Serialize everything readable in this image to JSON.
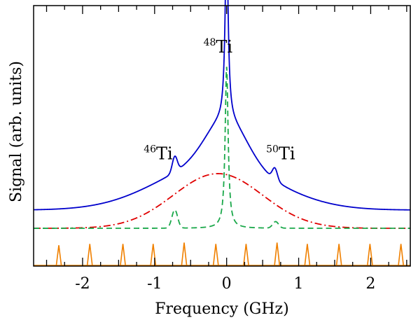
{
  "chart_data": {
    "type": "line",
    "title": "",
    "xlabel": "Frequency (GHz)",
    "ylabel": "Signal (arb. units)",
    "xlim": [
      -2.68,
      2.55
    ],
    "ylim": [
      0,
      1
    ],
    "xticks": [
      -2,
      -1,
      0,
      1,
      2
    ],
    "xtick_labels": [
      "-2",
      "-1",
      "0",
      "1",
      "2"
    ],
    "yticks_labeled": false,
    "grid": false,
    "legend": "none",
    "annotations": [
      {
        "mass": "48",
        "element": "Ti",
        "x": -0.12,
        "y": 0.82
      },
      {
        "mass": "46",
        "element": "Ti",
        "x": -0.95,
        "y": 0.41
      },
      {
        "mass": "50",
        "element": "Ti",
        "x": 0.75,
        "y": 0.41
      }
    ],
    "series": [
      {
        "style": "solid",
        "color": "#0000cc",
        "baseline": 0.215,
        "peaks": [
          {
            "x": 0.0,
            "height": 0.71,
            "width": 0.025,
            "shape": "lorentzian"
          },
          {
            "x": 0.0,
            "height": 0.17,
            "width": 0.28,
            "shape": "gaussian"
          },
          {
            "x": -0.72,
            "height": 0.06,
            "width": 0.035,
            "shape": "gaussian"
          },
          {
            "x": 0.67,
            "height": 0.045,
            "width": 0.035,
            "shape": "gaussian"
          }
        ],
        "broad": {
          "x": -0.15,
          "height": 0.18,
          "width": 0.8
        }
      },
      {
        "style": "dash-dot",
        "color": "#e00000",
        "baseline": 0.145,
        "broad": {
          "x": -0.12,
          "height": 0.21,
          "width": 0.62
        }
      },
      {
        "style": "dashed",
        "color": "#1aa84a",
        "baseline": 0.145,
        "peaks": [
          {
            "x": 0.0,
            "height": 0.62,
            "width": 0.025,
            "shape": "lorentzian"
          },
          {
            "x": -0.72,
            "height": 0.07,
            "width": 0.04,
            "shape": "gaussian"
          },
          {
            "x": 0.68,
            "height": 0.025,
            "width": 0.04,
            "shape": "gaussian"
          }
        ]
      }
    ],
    "comb": {
      "color": "#f08000",
      "positions": [
        -2.33,
        -1.9,
        -1.44,
        -1.02,
        -0.59,
        -0.15,
        0.27,
        0.7,
        1.12,
        1.56,
        1.99,
        2.42
      ],
      "heights": [
        0.08,
        0.085,
        0.085,
        0.085,
        0.09,
        0.085,
        0.085,
        0.09,
        0.085,
        0.085,
        0.085,
        0.085
      ],
      "width": 0.012
    }
  }
}
